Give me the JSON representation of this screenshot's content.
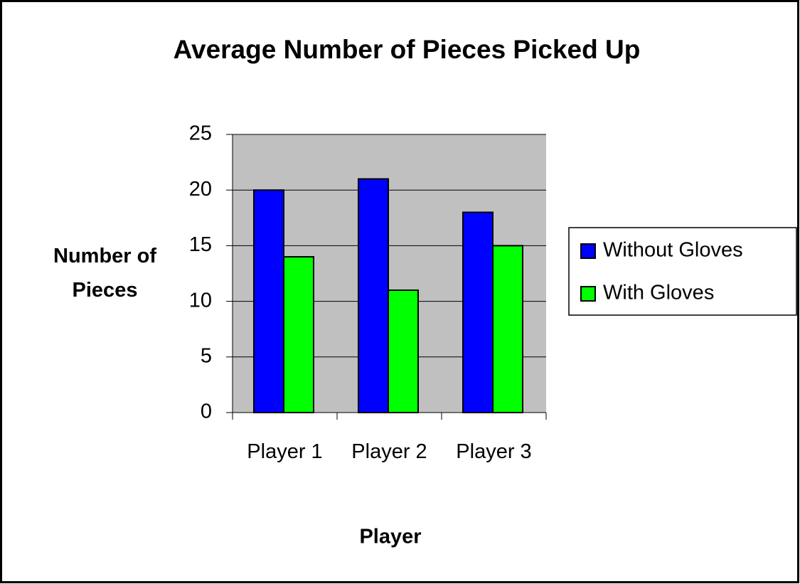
{
  "chart_data": {
    "type": "bar",
    "title": "Average Number of Pieces Picked Up",
    "x_label": "Player",
    "y_label": "Number of Pieces",
    "categories": [
      "Player 1",
      "Player 2",
      "Player 3"
    ],
    "series": [
      {
        "name": "Without Gloves",
        "color": "#0000ff",
        "values": [
          20,
          21,
          18
        ]
      },
      {
        "name": "With Gloves",
        "color": "#00ff00",
        "values": [
          14,
          11,
          15
        ]
      }
    ],
    "ylim": [
      0,
      25
    ],
    "yticks": [
      0,
      5,
      10,
      15,
      20,
      25
    ],
    "grid": true,
    "legend": "right",
    "plot_background": "#c0c0c0"
  }
}
